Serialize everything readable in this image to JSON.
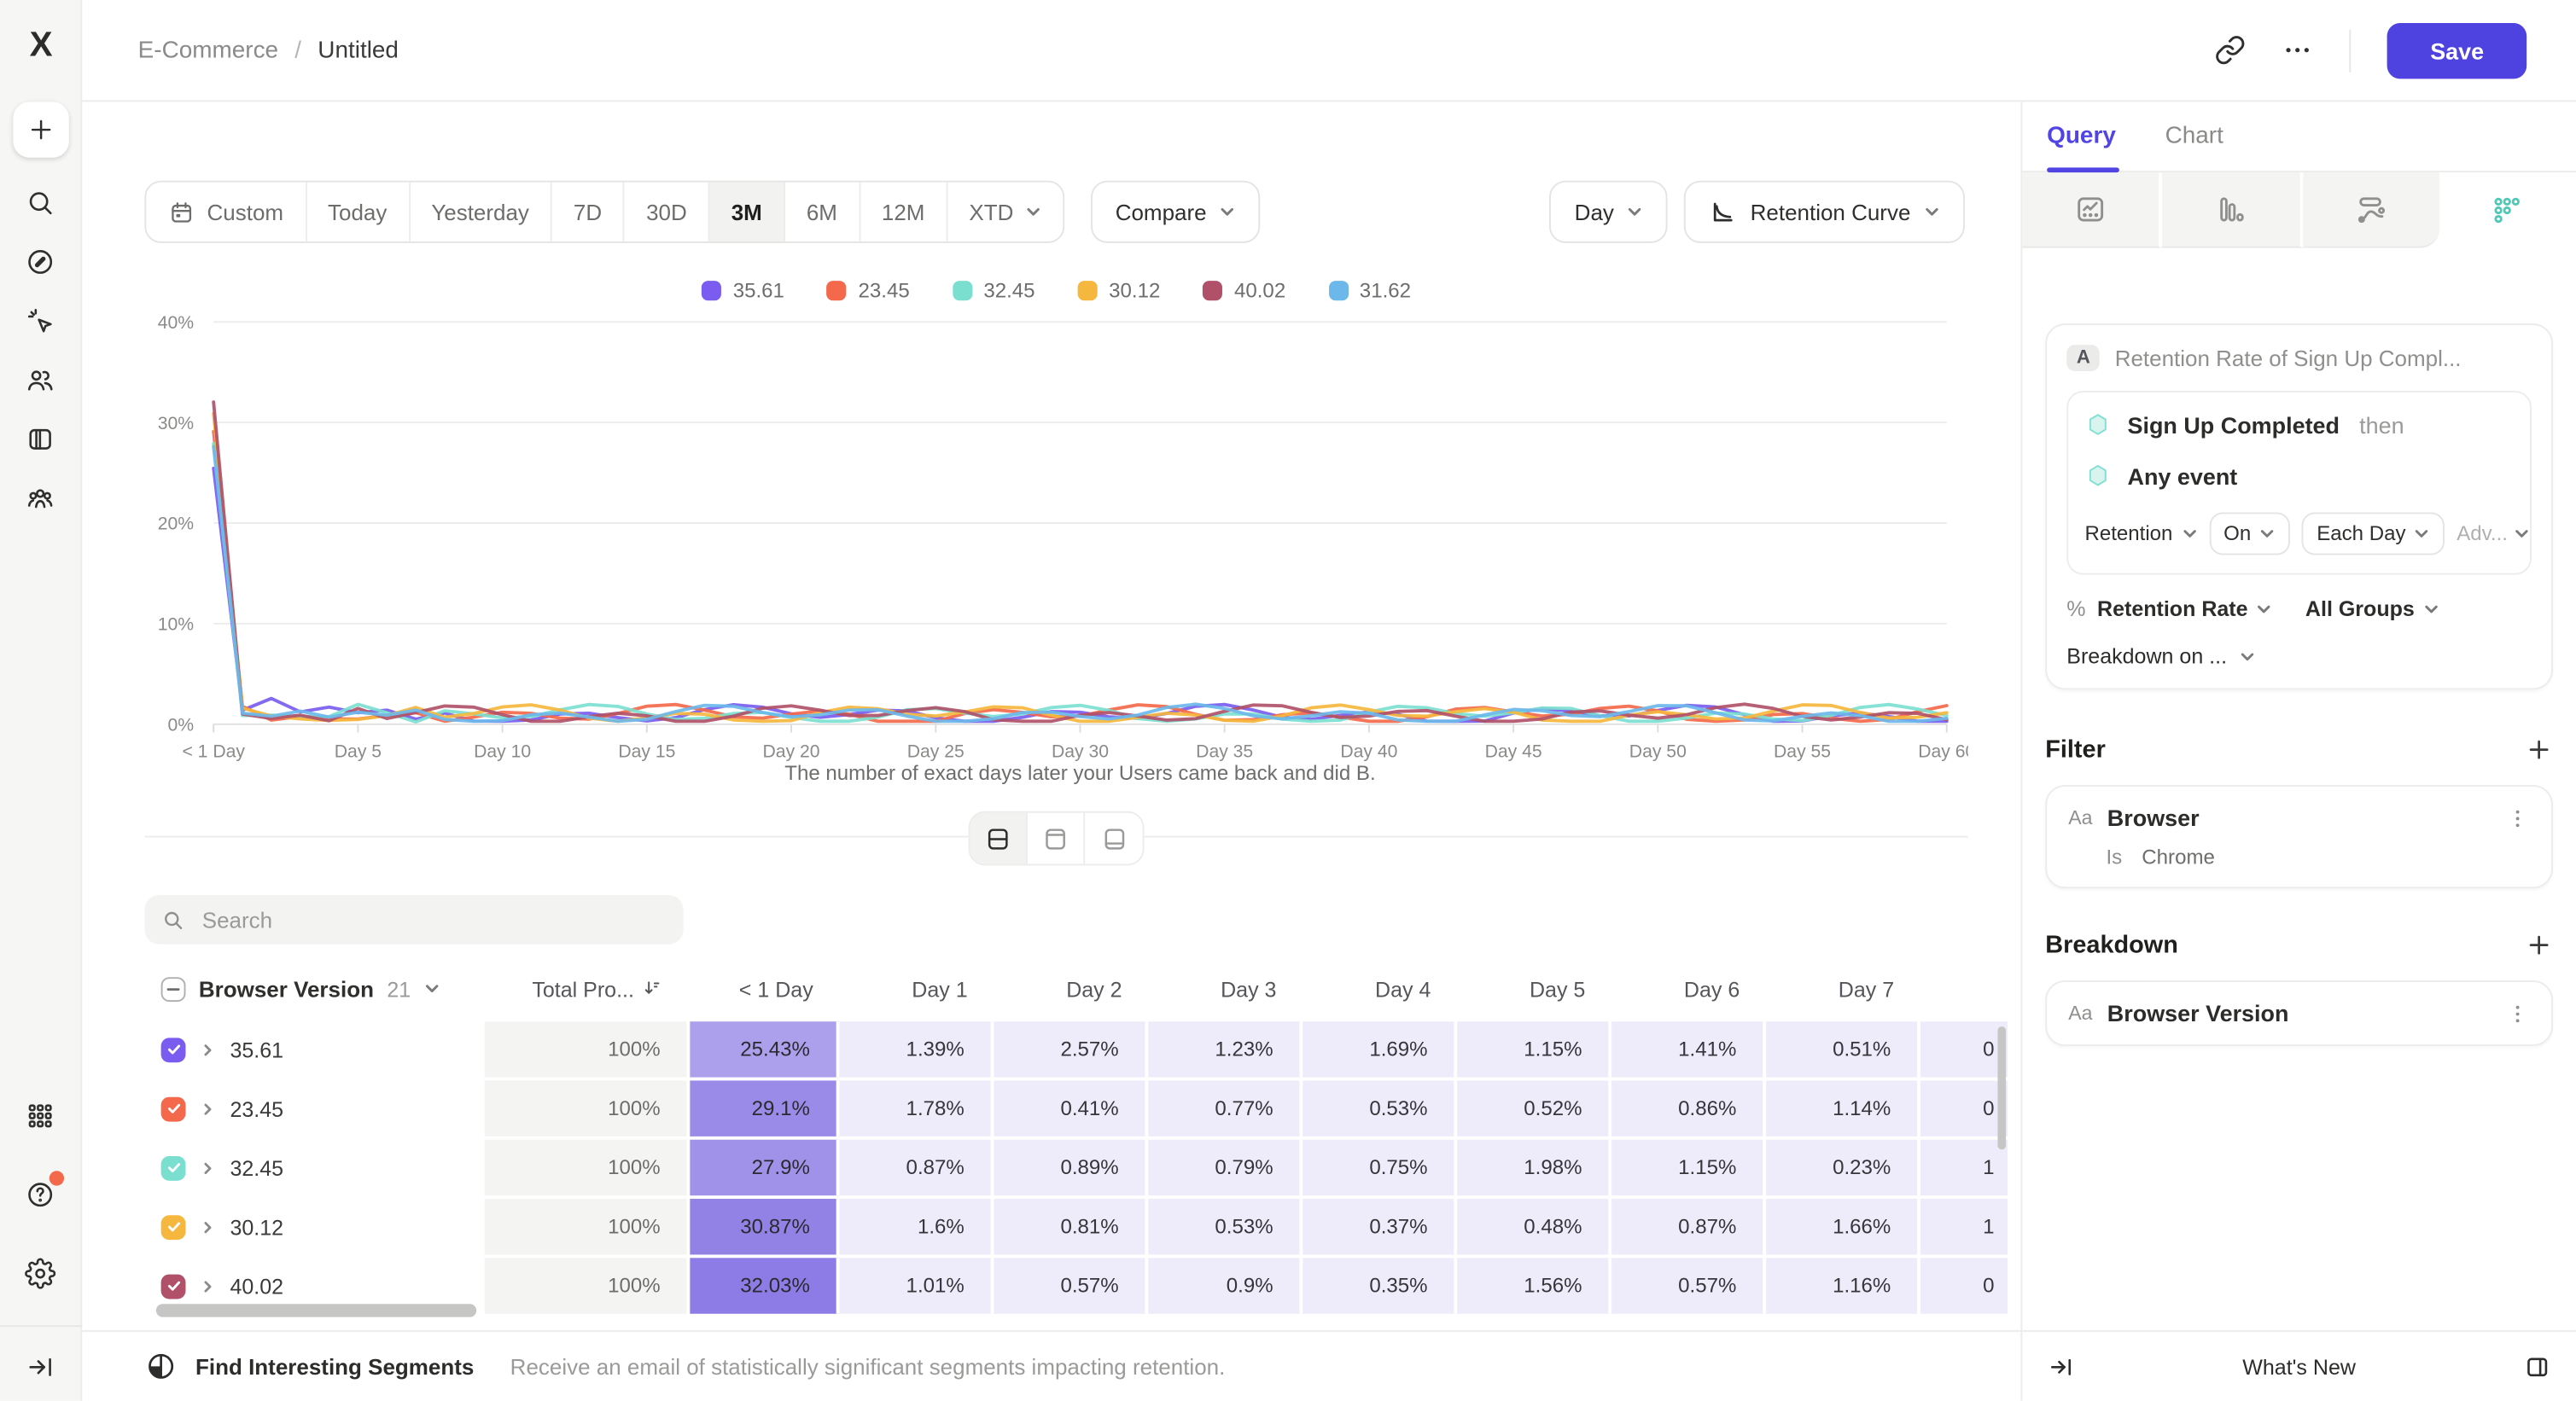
{
  "header": {
    "breadcrumb": {
      "project": "E-Commerce",
      "separator": "/",
      "report": "Untitled"
    },
    "actions": {
      "save_label": "Save"
    }
  },
  "sidebar": {
    "top_items": [
      {
        "icon": "plus-icon",
        "name": "create"
      },
      {
        "icon": "search-icon",
        "name": "search"
      },
      {
        "icon": "compass-icon",
        "name": "discover"
      },
      {
        "icon": "cursor-click-icon",
        "name": "events"
      },
      {
        "icon": "users-icon",
        "name": "users"
      },
      {
        "icon": "board-icon",
        "name": "boards"
      },
      {
        "icon": "group-icon",
        "name": "cohorts"
      }
    ],
    "bottom_items": [
      {
        "icon": "apps-grid-icon",
        "name": "apps"
      },
      {
        "icon": "help-icon",
        "name": "help",
        "badge": true
      },
      {
        "icon": "gear-icon",
        "name": "settings"
      },
      {
        "icon": "collapse-icon",
        "name": "collapse"
      }
    ]
  },
  "toolbar": {
    "date_ranges": [
      {
        "label": "Custom",
        "icon": "calendar-icon"
      },
      {
        "label": "Today"
      },
      {
        "label": "Yesterday"
      },
      {
        "label": "7D"
      },
      {
        "label": "30D"
      },
      {
        "label": "3M"
      },
      {
        "label": "6M"
      },
      {
        "label": "12M"
      },
      {
        "label": "XTD",
        "chevron": true
      }
    ],
    "active_range": "3M",
    "compare_label": "Compare",
    "granularity_label": "Day",
    "chart_type_label": "Retention Curve"
  },
  "chart_data": {
    "type": "line",
    "title": "",
    "xlabel": "The number of exact days later your Users came back and did B.",
    "ylabel": "",
    "y_ticks": [
      "0%",
      "10%",
      "20%",
      "30%",
      "40%"
    ],
    "ylim": [
      0,
      40
    ],
    "x_range_days": [
      0,
      60
    ],
    "x_tick_days": [
      0,
      5,
      10,
      15,
      20,
      25,
      30,
      35,
      40,
      45,
      50,
      55,
      60
    ],
    "x_tick_labels": [
      "< 1 Day",
      "Day 5",
      "Day 10",
      "Day 15",
      "Day 20",
      "Day 25",
      "Day 30",
      "Day 35",
      "Day 40",
      "Day 45",
      "Day 50",
      "Day 55",
      "Day 60"
    ],
    "grid": true,
    "legend_position": "top",
    "series": [
      {
        "name": "35.61",
        "color": "#7a5cf0",
        "values_day0_to_7": [
          25.43,
          1.39,
          2.57,
          1.23,
          1.69,
          1.15,
          1.41,
          0.51
        ]
      },
      {
        "name": "23.45",
        "color": "#f4694b",
        "values_day0_to_7": [
          29.1,
          1.78,
          0.41,
          0.77,
          0.53,
          0.52,
          0.86,
          1.14
        ]
      },
      {
        "name": "32.45",
        "color": "#7bdfd0",
        "values_day0_to_7": [
          27.9,
          0.87,
          0.89,
          0.79,
          0.75,
          1.98,
          1.15,
          0.23
        ]
      },
      {
        "name": "30.12",
        "color": "#f5b73e",
        "values_day0_to_7": [
          30.87,
          1.6,
          0.81,
          0.53,
          0.37,
          0.48,
          0.87,
          1.66
        ]
      },
      {
        "name": "40.02",
        "color": "#b05169",
        "values_day0_to_7": [
          32.03,
          1.01,
          0.57,
          0.9,
          0.35,
          1.56,
          0.57,
          1.16
        ]
      },
      {
        "name": "31.62",
        "color": "#6cb8ea",
        "values_day0_to_7": [
          27.6,
          1.1,
          0.8,
          1.3,
          0.7,
          1.2,
          0.9,
          1.4
        ],
        "estimated_day0_to_7": true
      }
    ],
    "later_days_note": "days 8-60 fluctuate roughly between 0.3% and 2.3%"
  },
  "view_toggle": {
    "options": [
      "split-view",
      "chart-only",
      "table-only"
    ],
    "active": "split-view"
  },
  "table": {
    "search_placeholder": "Search",
    "group_column": {
      "label": "Browser Version",
      "count": "21"
    },
    "total_column": {
      "label": "Total Pro...",
      "sort": "desc"
    },
    "day_columns": [
      "< 1 Day",
      "Day 1",
      "Day 2",
      "Day 3",
      "Day 4",
      "Day 5",
      "Day 6",
      "Day 7"
    ],
    "rows": [
      {
        "label": "35.61",
        "color": "#7a5cf0",
        "total": "100%",
        "day0": "25.43%",
        "days": [
          "1.39%",
          "2.57%",
          "1.23%",
          "1.69%",
          "1.15%",
          "1.41%",
          "0.51%"
        ],
        "day8_partial": "0"
      },
      {
        "label": "23.45",
        "color": "#f4694b",
        "total": "100%",
        "day0": "29.1%",
        "days": [
          "1.78%",
          "0.41%",
          "0.77%",
          "0.53%",
          "0.52%",
          "0.86%",
          "1.14%"
        ],
        "day8_partial": "0"
      },
      {
        "label": "32.45",
        "color": "#7bdfd0",
        "total": "100%",
        "day0": "27.9%",
        "days": [
          "0.87%",
          "0.89%",
          "0.79%",
          "0.75%",
          "1.98%",
          "1.15%",
          "0.23%"
        ],
        "day8_partial": "1"
      },
      {
        "label": "30.12",
        "color": "#f5b73e",
        "total": "100%",
        "day0": "30.87%",
        "days": [
          "1.6%",
          "0.81%",
          "0.53%",
          "0.37%",
          "0.48%",
          "0.87%",
          "1.66%"
        ],
        "day8_partial": "1"
      },
      {
        "label": "40.02",
        "color": "#b05169",
        "total": "100%",
        "day0": "32.03%",
        "days": [
          "1.01%",
          "0.57%",
          "0.9%",
          "0.35%",
          "1.56%",
          "0.57%",
          "1.16%"
        ],
        "day8_partial": "0"
      }
    ]
  },
  "main_footer": {
    "title": "Find Interesting Segments",
    "description": "Receive an email of statistically significant segments impacting retention."
  },
  "panel": {
    "tabs": [
      "Query",
      "Chart"
    ],
    "active_tab": "Query",
    "report_types": [
      {
        "icon": "insights-icon",
        "name": "insights"
      },
      {
        "icon": "funnels-icon",
        "name": "funnels"
      },
      {
        "icon": "flows-icon",
        "name": "flows"
      },
      {
        "icon": "retention-icon",
        "name": "retention",
        "active": true
      }
    ],
    "query": {
      "step_badge": "A",
      "title": "Retention Rate of Sign Up Compl...",
      "first_event": "Sign Up Completed",
      "then_label": "then",
      "return_event": "Any event",
      "retention_label": "Retention",
      "on_label": "On",
      "interval_label": "Each Day",
      "advanced_label": "Adv...",
      "metric_prefix": "%",
      "metric_label": "Retention Rate",
      "groups_label": "All Groups",
      "breakdown_on_label": "Breakdown on ..."
    },
    "filter": {
      "title": "Filter",
      "property_type": "Aa",
      "property": "Browser",
      "operator": "Is",
      "value": "Chrome"
    },
    "breakdown": {
      "title": "Breakdown",
      "property_type": "Aa",
      "property": "Browser Version"
    },
    "footer": {
      "whats_new": "What's New"
    }
  }
}
